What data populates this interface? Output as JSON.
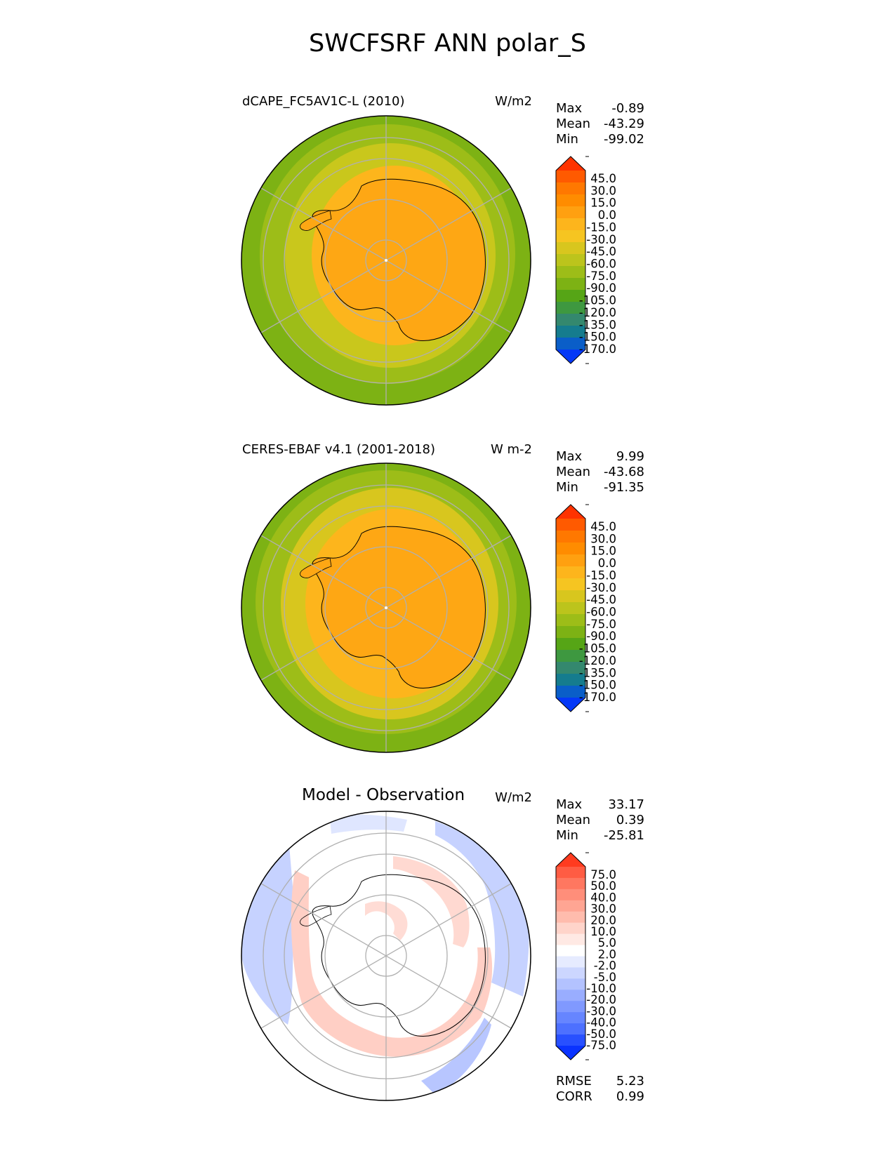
{
  "title": "SWCFSRF ANN polar_S",
  "panels": [
    {
      "title": "dCAPE_FC5AV1C-L (2010)",
      "units": "W/m2",
      "stats": [
        {
          "label": "Max",
          "value": "-0.89"
        },
        {
          "label": "Mean",
          "value": "-43.29"
        },
        {
          "label": "Min",
          "value": "-99.02"
        }
      ]
    },
    {
      "title": "CERES-EBAF v4.1 (2001-2018)",
      "units": "W m-2",
      "stats": [
        {
          "label": "Max",
          "value": "9.99"
        },
        {
          "label": "Mean",
          "value": "-43.68"
        },
        {
          "label": "Min",
          "value": "-91.35"
        }
      ]
    },
    {
      "title": "Model - Observation",
      "units": "W/m2",
      "stats": [
        {
          "label": "Max",
          "value": "33.17"
        },
        {
          "label": "Mean",
          "value": "0.39"
        },
        {
          "label": "Min",
          "value": "-25.81"
        }
      ],
      "metrics": [
        {
          "label": "RMSE",
          "value": "5.23"
        },
        {
          "label": "CORR",
          "value": "0.99"
        }
      ]
    }
  ],
  "chart_data": [
    {
      "type": "heatmap",
      "projection": "south-polar-stereographic",
      "title": "dCAPE_FC5AV1C-L (2010)",
      "units": "W/m2",
      "colorbar": {
        "ticks": [
          "45.0",
          "30.0",
          "15.0",
          "0.0",
          "-15.0",
          "-30.0",
          "-45.0",
          "-60.0",
          "-75.0",
          "-90.0",
          "-105.0",
          "-120.0",
          "-135.0",
          "-150.0",
          "-170.0"
        ],
        "colors": [
          "#ff3300",
          "#ff5a00",
          "#ff7800",
          "#ff8c00",
          "#ffa010",
          "#fdb51c",
          "#f6c521",
          "#d8c61e",
          "#bcc41c",
          "#9dbd18",
          "#7db214",
          "#56a516",
          "#3e9840",
          "#34886e",
          "#157c8e",
          "#0a5ec8",
          "#0438f7"
        ],
        "extend": "both"
      },
      "stats": {
        "max": -0.89,
        "mean": -43.29,
        "min": -99.02
      },
      "lat_rings": [
        -80,
        -70,
        -60,
        -50
      ],
      "meridians_deg": [
        0,
        60,
        120,
        180,
        240,
        300
      ]
    },
    {
      "type": "heatmap",
      "projection": "south-polar-stereographic",
      "title": "CERES-EBAF v4.1 (2001-2018)",
      "units": "W m-2",
      "colorbar": {
        "ticks": [
          "45.0",
          "30.0",
          "15.0",
          "0.0",
          "-15.0",
          "-30.0",
          "-45.0",
          "-60.0",
          "-75.0",
          "-90.0",
          "-105.0",
          "-120.0",
          "-135.0",
          "-150.0",
          "-170.0"
        ],
        "colors": [
          "#ff3300",
          "#ff5a00",
          "#ff7800",
          "#ff8c00",
          "#ffa010",
          "#fdb51c",
          "#f6c521",
          "#d8c61e",
          "#bcc41c",
          "#9dbd18",
          "#7db214",
          "#56a516",
          "#3e9840",
          "#34886e",
          "#157c8e",
          "#0a5ec8",
          "#0438f7"
        ],
        "extend": "both"
      },
      "stats": {
        "max": 9.99,
        "mean": -43.68,
        "min": -91.35
      },
      "lat_rings": [
        -80,
        -70,
        -60,
        -50
      ],
      "meridians_deg": [
        0,
        60,
        120,
        180,
        240,
        300
      ]
    },
    {
      "type": "heatmap",
      "projection": "south-polar-stereographic",
      "title": "Model - Observation",
      "units": "W/m2",
      "colorbar": {
        "ticks": [
          "75.0",
          "50.0",
          "40.0",
          "30.0",
          "20.0",
          "10.0",
          "5.0",
          "2.0",
          "-2.0",
          "-5.0",
          "-10.0",
          "-20.0",
          "-30.0",
          "-40.0",
          "-50.0",
          "-75.0"
        ],
        "colors": [
          "#ff3b1f",
          "#ff5c43",
          "#ff7760",
          "#ff8e7a",
          "#ffa593",
          "#ffbcad",
          "#ffd4ca",
          "#ffe9e4",
          "#ffffff",
          "#e6ebff",
          "#ccd6ff",
          "#b3c2ff",
          "#99adff",
          "#8099ff",
          "#6685ff",
          "#4d70ff",
          "#2850ff",
          "#0a33ff"
        ],
        "extend": "both"
      },
      "stats": {
        "max": 33.17,
        "mean": 0.39,
        "min": -25.81
      },
      "metrics": {
        "rmse": 5.23,
        "corr": 0.99
      },
      "lat_rings": [
        -80,
        -70,
        -60,
        -50
      ],
      "meridians_deg": [
        0,
        60,
        120,
        180,
        240,
        300
      ]
    }
  ]
}
